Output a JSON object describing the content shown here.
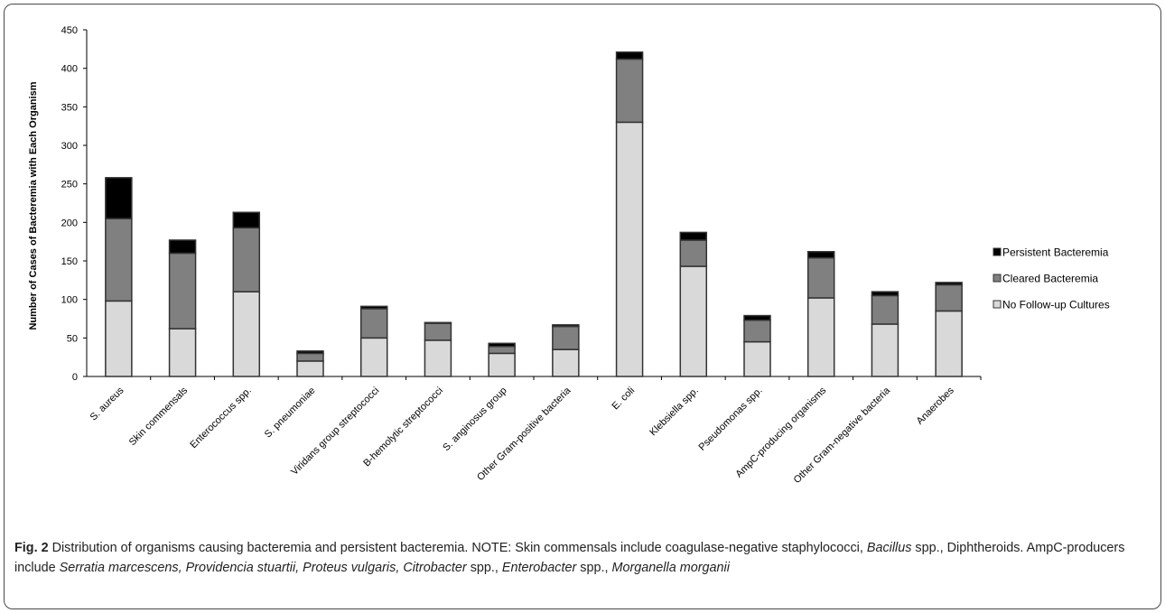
{
  "chart_data": {
    "type": "bar",
    "stacked": true,
    "ylabel": "Number of Cases of Bacteremia with Each Organism",
    "ylim": [
      0,
      450
    ],
    "yticks": [
      0,
      50,
      100,
      150,
      200,
      250,
      300,
      350,
      400,
      450
    ],
    "grid": false,
    "legend_position": "right",
    "categories": [
      "S. aureus",
      "Skin commensals",
      "Enterococcus spp.",
      "S. pneumoniae",
      "Viridans group streptococci",
      "B-hemolytic streptococci",
      "S. anginosus group",
      "Other Gram-positive bacteria",
      "E. coli",
      "Klebsiella spp.",
      "Pseudomonas spp.",
      "AmpC-producing organisms",
      "Other Gram-negative bacteria",
      "Anaerobes"
    ],
    "series": [
      {
        "name": "No Follow-up Cultures",
        "color": "#d9d9d9",
        "values": [
          98,
          62,
          110,
          20,
          50,
          47,
          30,
          35,
          330,
          143,
          45,
          102,
          68,
          85
        ]
      },
      {
        "name": "Cleared Bacteremia",
        "color": "#808080",
        "values": [
          107,
          98,
          83,
          10,
          38,
          22,
          9,
          30,
          82,
          34,
          28,
          52,
          37,
          34
        ]
      },
      {
        "name": "Persistent Bacteremia",
        "color": "#000000",
        "values": [
          53,
          17,
          20,
          3,
          3,
          1,
          4,
          2,
          9,
          10,
          6,
          8,
          5,
          3
        ]
      }
    ],
    "legend_order": [
      "Persistent Bacteremia",
      "Cleared Bacteremia",
      "No Follow-up Cultures"
    ]
  },
  "caption": {
    "label": "Fig. 2",
    "parts": [
      {
        "text": " Distribution of organisms causing bacteremia and persistent bacteremia. NOTE: Skin commensals include coagulase-negative staphylococci, ",
        "italic": false
      },
      {
        "text": "Bacillus",
        "italic": true
      },
      {
        "text": " spp., Diphtheroids. AmpC-producers include ",
        "italic": false
      },
      {
        "text": "Serratia marcescens, Providencia stuartii, Proteus vulgaris, Citrobacter",
        "italic": true
      },
      {
        "text": " spp., ",
        "italic": false
      },
      {
        "text": "Enterobacter",
        "italic": true
      },
      {
        "text": " spp., ",
        "italic": false
      },
      {
        "text": "Morganella morganii",
        "italic": true
      }
    ]
  }
}
